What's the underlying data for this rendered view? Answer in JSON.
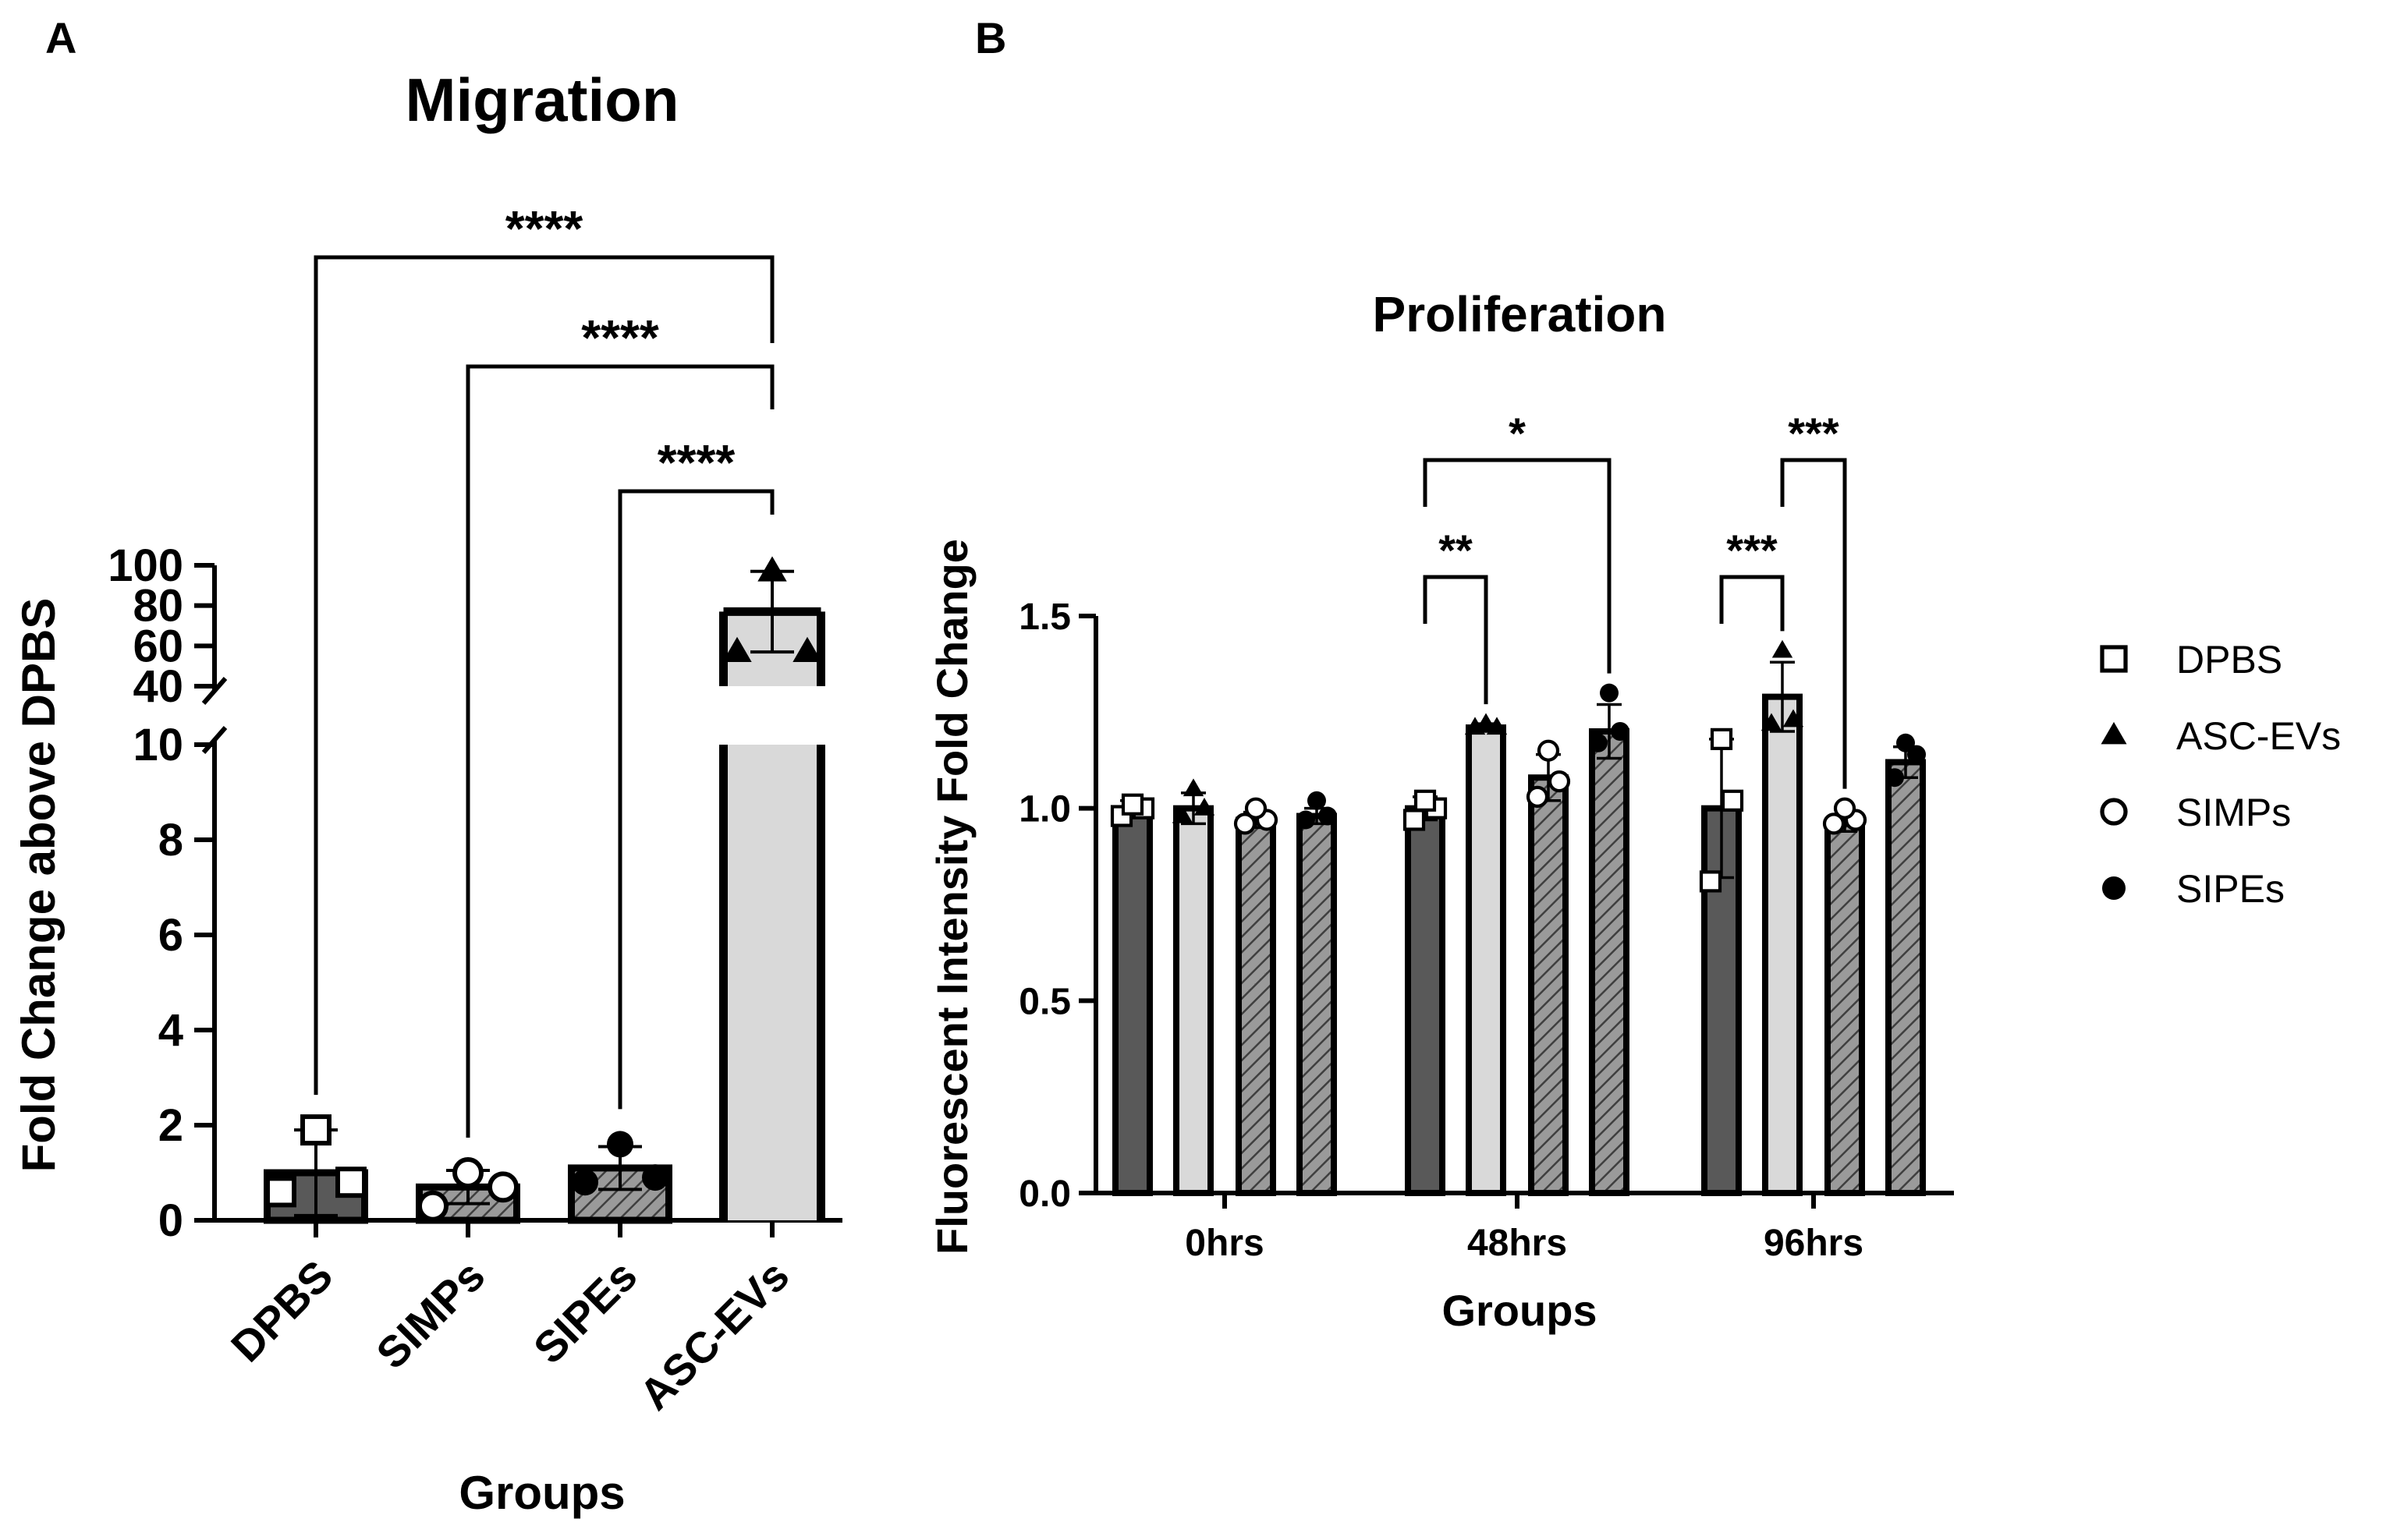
{
  "panels": {
    "a": {
      "letter": "A"
    },
    "b": {
      "letter": "B"
    }
  },
  "colors": {
    "dark": "#595959",
    "light": "#d9d9d9",
    "hatch_bg": "#9a9a9a",
    "line": "#000000"
  },
  "chart_data": [
    {
      "type": "bar",
      "panel": "A",
      "title": "Migration",
      "xlabel": "Groups",
      "ylabel": "Fold Change above DPBS",
      "categories": [
        "DPBS",
        "SIMPs",
        "SIPEs",
        "ASC-EVs"
      ],
      "values": [
        1.0,
        0.7,
        1.1,
        77
      ],
      "errors": [
        0.9,
        0.35,
        0.45,
        20
      ],
      "points": [
        [
          0.6,
          0.8,
          1.9
        ],
        [
          0.3,
          0.7,
          1.0
        ],
        [
          0.8,
          0.9,
          1.6
        ],
        [
          57,
          57,
          97
        ]
      ],
      "fills": [
        "dark",
        "dark-hatch",
        "dark-hatch",
        "light"
      ],
      "markers": [
        "open-square",
        "open-circle",
        "filled-circle",
        "filled-triangle"
      ],
      "y_axis_broken": true,
      "ylim_lower": [
        0,
        10
      ],
      "ylim_upper": [
        40,
        100
      ],
      "yticks_lower": [
        "0",
        "2",
        "4",
        "6",
        "8",
        "10"
      ],
      "yticks_upper": [
        "40",
        "60",
        "80",
        "100"
      ],
      "significance": [
        {
          "from": "DPBS",
          "to": "ASC-EVs",
          "label": "****"
        },
        {
          "from": "SIMPs",
          "to": "ASC-EVs",
          "label": "****"
        },
        {
          "from": "SIPEs",
          "to": "ASC-EVs",
          "label": "****"
        }
      ]
    },
    {
      "type": "bar",
      "panel": "B",
      "title": "Proliferation",
      "xlabel": "Groups",
      "ylabel": "Fluorescent Intensity Fold Change",
      "categories": [
        "0hrs",
        "48hrs",
        "96hrs"
      ],
      "ylim": [
        0,
        1.5
      ],
      "yticks": [
        "0.0",
        "0.5",
        "1.0",
        "1.5"
      ],
      "series": [
        {
          "name": "DPBS",
          "values": [
            1.0,
            1.0,
            1.0
          ],
          "errors": [
            0.02,
            0.03,
            0.18
          ],
          "points": [
            [
              0.98,
              1.0,
              1.01
            ],
            [
              0.97,
              1.0,
              1.02
            ],
            [
              0.81,
              1.02,
              1.18
            ]
          ],
          "fill": "dark",
          "marker": "open-square"
        },
        {
          "name": "ASC-EVs",
          "values": [
            1.0,
            1.21,
            1.29
          ],
          "errors": [
            0.04,
            0.01,
            0.09
          ],
          "points": [
            [
              0.98,
              1.0,
              1.05
            ],
            [
              1.21,
              1.21,
              1.22
            ],
            [
              1.22,
              1.23,
              1.41
            ]
          ],
          "fill": "light",
          "marker": "filled-triangle"
        },
        {
          "name": "SIMPs",
          "values": [
            0.97,
            1.08,
            0.96
          ],
          "errors": [
            0.02,
            0.06,
            0.02
          ],
          "points": [
            [
              0.96,
              0.97,
              1.0
            ],
            [
              1.03,
              1.07,
              1.15
            ],
            [
              0.96,
              0.97,
              1.0
            ]
          ],
          "fill": "dark-hatch",
          "marker": "open-circle"
        },
        {
          "name": "SIPEs",
          "values": [
            0.98,
            1.2,
            1.12
          ],
          "errors": [
            0.02,
            0.07,
            0.04
          ],
          "points": [
            [
              0.97,
              0.98,
              1.02
            ],
            [
              1.17,
              1.2,
              1.3
            ],
            [
              1.08,
              1.14,
              1.17
            ]
          ],
          "fill": "dark-hatch",
          "marker": "filled-circle"
        }
      ],
      "legend_position": "right",
      "significance": [
        {
          "group": "48hrs",
          "from": "DPBS",
          "to": "ASC-EVs",
          "label": "**"
        },
        {
          "group": "48hrs",
          "from": "DPBS",
          "to": "SIPEs",
          "label": "*"
        },
        {
          "group": "96hrs",
          "from": "DPBS",
          "to": "ASC-EVs",
          "label": "***"
        },
        {
          "group": "96hrs",
          "from": "ASC-EVs",
          "to": "SIMPs",
          "label": "***"
        }
      ]
    }
  ]
}
